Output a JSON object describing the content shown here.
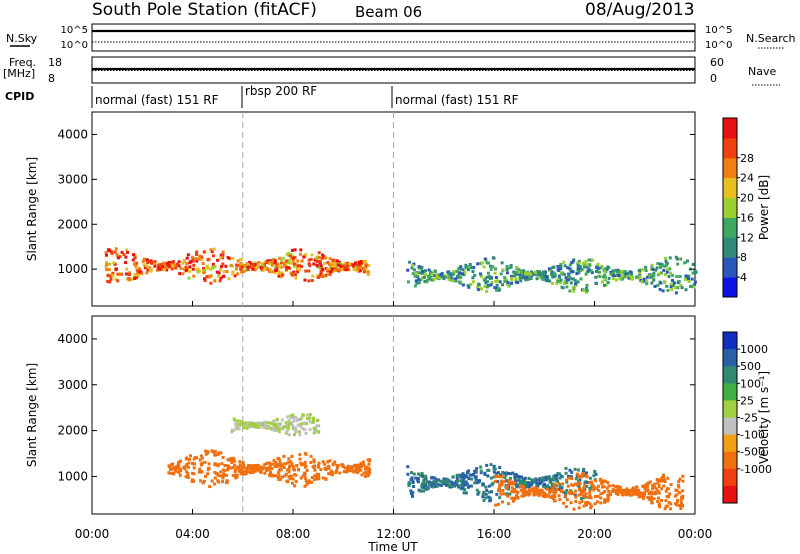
{
  "header": {
    "station": "South Pole Station (fitACF)",
    "beam": "Beam 06",
    "date": "08/Aug/2013"
  },
  "strips": {
    "nsky_label": "N.Sky",
    "nsky_ticks": [
      "10^5",
      "10^0"
    ],
    "nsearch_label": "N.Search",
    "nsearch_ticks": [
      "10^5",
      "10^0"
    ],
    "freq_label": "Freq.",
    "freq_unit": "[MHz]",
    "freq_ticks": [
      "18",
      "8"
    ],
    "nave_label": "Nave",
    "nave_ticks": [
      "60",
      "0"
    ],
    "cpid_label": "CPID"
  },
  "cpid_segments": [
    {
      "label": "normal (fast) 151 RF",
      "start": 0,
      "end": 6
    },
    {
      "label": "rbsp 200 RF",
      "start": 6,
      "end": 12
    },
    {
      "label": "normal (fast) 151 RF",
      "start": 12,
      "end": 24
    }
  ],
  "axes": {
    "ylabel": "Slant Range [km]",
    "xlabel": "Time UT",
    "x_ticks": [
      "00:00",
      "04:00",
      "08:00",
      "12:00",
      "16:00",
      "20:00",
      "00:00"
    ],
    "y_ticks": [
      "1000",
      "2000",
      "3000",
      "4000"
    ]
  },
  "chart_data": [
    {
      "type": "heatmap",
      "title": "",
      "xlabel": "Time UT",
      "ylabel": "Slant Range [km]",
      "xlim": [
        0,
        24
      ],
      "ylim": [
        180,
        4500
      ],
      "colorbar": {
        "label": "Power [dB]",
        "ticks": [
          "4",
          "8",
          "12",
          "16",
          "20",
          "24",
          "28"
        ],
        "colors": [
          "#1010e8",
          "#2a58b8",
          "#2f8a7a",
          "#3fa860",
          "#9ad030",
          "#e8c020",
          "#f08010",
          "#f04010",
          "#e81010"
        ]
      },
      "features": [
        {
          "desc": "strong echo band",
          "t_start": 0.5,
          "t_end": 11,
          "range_km": [
            700,
            1500
          ],
          "power_db": [
            16,
            30
          ]
        },
        {
          "desc": "weaker scatter",
          "t_start": 12.5,
          "t_end": 24,
          "range_km": [
            500,
            1300
          ],
          "power_db": [
            4,
            16
          ]
        }
      ]
    },
    {
      "type": "heatmap",
      "title": "",
      "xlabel": "Time UT",
      "ylabel": "Slant Range [km]",
      "xlim": [
        0,
        24
      ],
      "ylim": [
        180,
        4500
      ],
      "colorbar": {
        "label": "Velocity [m s⁻¹]",
        "ticks": [
          "1000",
          "500",
          "100",
          "25",
          "-25",
          "-100",
          "-500",
          "-1000"
        ],
        "colors": [
          "#1030c0",
          "#2860a8",
          "#2f8a70",
          "#40b040",
          "#a0d040",
          "#c0c0c0",
          "#f0a010",
          "#f07010",
          "#f04010",
          "#e81010"
        ]
      },
      "features": [
        {
          "desc": "negative velocity band",
          "t_start": 3,
          "t_end": 11,
          "range_km": [
            800,
            1600
          ],
          "velocity": [
            -500,
            -100
          ]
        },
        {
          "desc": "ground scatter band",
          "t_start": 5.5,
          "t_end": 9,
          "range_km": [
            1900,
            2400
          ],
          "velocity": [
            -25,
            25
          ]
        },
        {
          "desc": "mixed velocities",
          "t_start": 12.5,
          "t_end": 20,
          "range_km": [
            500,
            1300
          ],
          "velocity": [
            100,
            1000
          ]
        },
        {
          "desc": "negative velocities late",
          "t_start": 16,
          "t_end": 23.5,
          "range_km": [
            300,
            1100
          ],
          "velocity": [
            -500,
            -100
          ]
        }
      ]
    }
  ]
}
